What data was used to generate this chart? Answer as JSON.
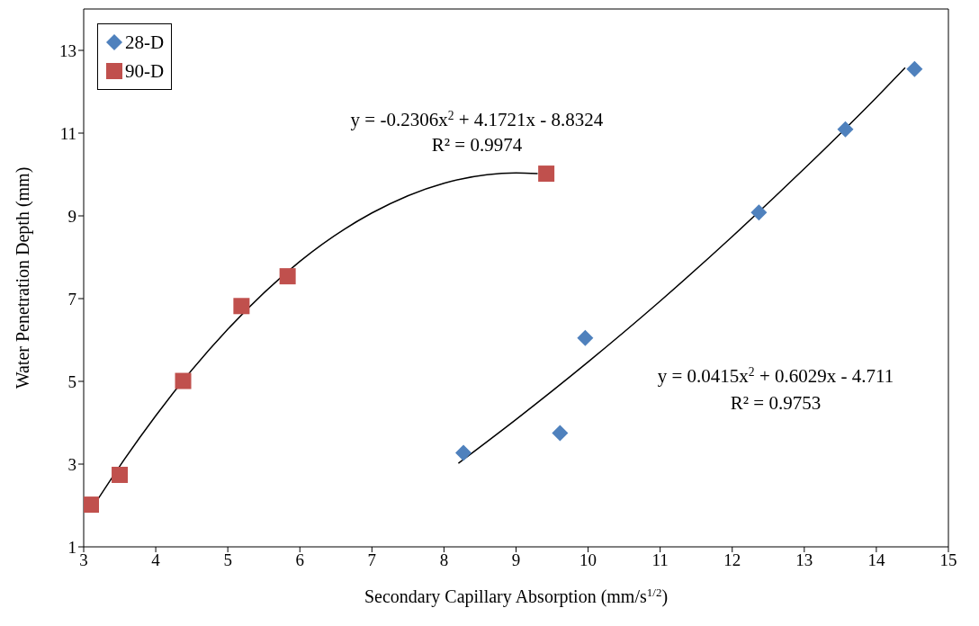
{
  "chart_data": {
    "type": "scatter",
    "xlabel": "Secondary Capillary Absorption (mm/s$^{1/2}$)",
    "ylabel": "Water Penetration Depth (mm)",
    "xlim": [
      3,
      15
    ],
    "xticks": [
      3,
      4,
      5,
      6,
      7,
      8,
      9,
      10,
      11,
      12,
      13,
      14,
      15
    ],
    "ylim": [
      1,
      14
    ],
    "yticks": [
      1,
      3,
      5,
      7,
      9,
      11,
      13
    ],
    "grid": false,
    "legend": "top left",
    "series": [
      {
        "name": "28-D",
        "color": "#4f81bd",
        "marker": "diamond",
        "x": [
          8.27,
          9.61,
          9.96,
          12.37,
          13.57,
          14.53
        ],
        "values": [
          3.27,
          3.75,
          6.05,
          9.08,
          11.09,
          12.55
        ]
      },
      {
        "name": "90-D",
        "color": "#c0504d",
        "marker": "square",
        "x": [
          3.1,
          3.5,
          4.38,
          5.19,
          5.83,
          9.42
        ],
        "values": [
          2.02,
          2.74,
          5.01,
          6.82,
          7.54,
          10.02
        ]
      },
      {
        "type": "line",
        "color": "#000000",
        "marker": "none",
        "x": [
          3.2,
          3.5,
          4,
          5,
          6,
          7,
          8,
          9,
          9.3
        ],
        "values": [
          2.16,
          2.95,
          4.17,
          6.26,
          7.9,
          9.07,
          9.79,
          10.04,
          10.02
        ]
      },
      {
        "type": "line",
        "color": "#000000",
        "marker": "none",
        "x": [
          8.2,
          9,
          10,
          11,
          12,
          13,
          14,
          14.4
        ],
        "values": [
          3.02,
          4.08,
          5.47,
          6.94,
          8.5,
          10.14,
          11.86,
          12.58
        ]
      }
    ],
    "annotations": [
      "y = -0.2306x$^{2}$ + 4.1721x - 8.8324",
      "R² = 0.9974",
      "y = 0.0415x$^{2}$ + 0.6029x - 4.711",
      "R² = 0.9753"
    ]
  }
}
